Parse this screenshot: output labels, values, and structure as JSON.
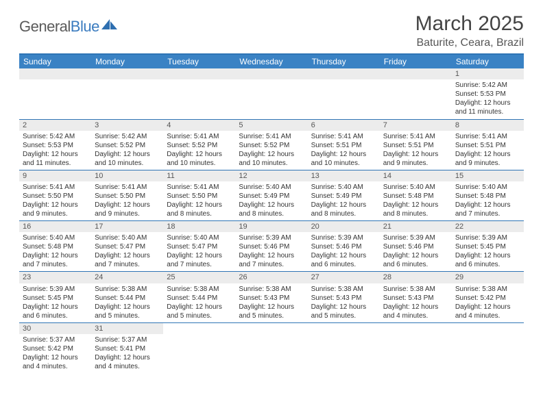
{
  "logo": {
    "part1": "General",
    "part2": "Blue"
  },
  "title": "March 2025",
  "location": "Baturite, Ceara, Brazil",
  "dayHeaders": [
    "Sunday",
    "Monday",
    "Tuesday",
    "Wednesday",
    "Thursday",
    "Friday",
    "Saturday"
  ],
  "colors": {
    "headerBg": "#3a82c4",
    "headerText": "#ffffff",
    "borderBlue": "#2e74b5",
    "dayNumBg": "#ececec",
    "logoGray": "#5a5a5a",
    "logoBlue": "#3a7bbf"
  },
  "weeks": [
    [
      null,
      null,
      null,
      null,
      null,
      null,
      {
        "num": "1",
        "sunrise": "Sunrise: 5:42 AM",
        "sunset": "Sunset: 5:53 PM",
        "daylight": "Daylight: 12 hours and 11 minutes."
      }
    ],
    [
      {
        "num": "2",
        "sunrise": "Sunrise: 5:42 AM",
        "sunset": "Sunset: 5:53 PM",
        "daylight": "Daylight: 12 hours and 11 minutes."
      },
      {
        "num": "3",
        "sunrise": "Sunrise: 5:42 AM",
        "sunset": "Sunset: 5:52 PM",
        "daylight": "Daylight: 12 hours and 10 minutes."
      },
      {
        "num": "4",
        "sunrise": "Sunrise: 5:41 AM",
        "sunset": "Sunset: 5:52 PM",
        "daylight": "Daylight: 12 hours and 10 minutes."
      },
      {
        "num": "5",
        "sunrise": "Sunrise: 5:41 AM",
        "sunset": "Sunset: 5:52 PM",
        "daylight": "Daylight: 12 hours and 10 minutes."
      },
      {
        "num": "6",
        "sunrise": "Sunrise: 5:41 AM",
        "sunset": "Sunset: 5:51 PM",
        "daylight": "Daylight: 12 hours and 10 minutes."
      },
      {
        "num": "7",
        "sunrise": "Sunrise: 5:41 AM",
        "sunset": "Sunset: 5:51 PM",
        "daylight": "Daylight: 12 hours and 9 minutes."
      },
      {
        "num": "8",
        "sunrise": "Sunrise: 5:41 AM",
        "sunset": "Sunset: 5:51 PM",
        "daylight": "Daylight: 12 hours and 9 minutes."
      }
    ],
    [
      {
        "num": "9",
        "sunrise": "Sunrise: 5:41 AM",
        "sunset": "Sunset: 5:50 PM",
        "daylight": "Daylight: 12 hours and 9 minutes."
      },
      {
        "num": "10",
        "sunrise": "Sunrise: 5:41 AM",
        "sunset": "Sunset: 5:50 PM",
        "daylight": "Daylight: 12 hours and 9 minutes."
      },
      {
        "num": "11",
        "sunrise": "Sunrise: 5:41 AM",
        "sunset": "Sunset: 5:50 PM",
        "daylight": "Daylight: 12 hours and 8 minutes."
      },
      {
        "num": "12",
        "sunrise": "Sunrise: 5:40 AM",
        "sunset": "Sunset: 5:49 PM",
        "daylight": "Daylight: 12 hours and 8 minutes."
      },
      {
        "num": "13",
        "sunrise": "Sunrise: 5:40 AM",
        "sunset": "Sunset: 5:49 PM",
        "daylight": "Daylight: 12 hours and 8 minutes."
      },
      {
        "num": "14",
        "sunrise": "Sunrise: 5:40 AM",
        "sunset": "Sunset: 5:48 PM",
        "daylight": "Daylight: 12 hours and 8 minutes."
      },
      {
        "num": "15",
        "sunrise": "Sunrise: 5:40 AM",
        "sunset": "Sunset: 5:48 PM",
        "daylight": "Daylight: 12 hours and 7 minutes."
      }
    ],
    [
      {
        "num": "16",
        "sunrise": "Sunrise: 5:40 AM",
        "sunset": "Sunset: 5:48 PM",
        "daylight": "Daylight: 12 hours and 7 minutes."
      },
      {
        "num": "17",
        "sunrise": "Sunrise: 5:40 AM",
        "sunset": "Sunset: 5:47 PM",
        "daylight": "Daylight: 12 hours and 7 minutes."
      },
      {
        "num": "18",
        "sunrise": "Sunrise: 5:40 AM",
        "sunset": "Sunset: 5:47 PM",
        "daylight": "Daylight: 12 hours and 7 minutes."
      },
      {
        "num": "19",
        "sunrise": "Sunrise: 5:39 AM",
        "sunset": "Sunset: 5:46 PM",
        "daylight": "Daylight: 12 hours and 7 minutes."
      },
      {
        "num": "20",
        "sunrise": "Sunrise: 5:39 AM",
        "sunset": "Sunset: 5:46 PM",
        "daylight": "Daylight: 12 hours and 6 minutes."
      },
      {
        "num": "21",
        "sunrise": "Sunrise: 5:39 AM",
        "sunset": "Sunset: 5:46 PM",
        "daylight": "Daylight: 12 hours and 6 minutes."
      },
      {
        "num": "22",
        "sunrise": "Sunrise: 5:39 AM",
        "sunset": "Sunset: 5:45 PM",
        "daylight": "Daylight: 12 hours and 6 minutes."
      }
    ],
    [
      {
        "num": "23",
        "sunrise": "Sunrise: 5:39 AM",
        "sunset": "Sunset: 5:45 PM",
        "daylight": "Daylight: 12 hours and 6 minutes."
      },
      {
        "num": "24",
        "sunrise": "Sunrise: 5:38 AM",
        "sunset": "Sunset: 5:44 PM",
        "daylight": "Daylight: 12 hours and 5 minutes."
      },
      {
        "num": "25",
        "sunrise": "Sunrise: 5:38 AM",
        "sunset": "Sunset: 5:44 PM",
        "daylight": "Daylight: 12 hours and 5 minutes."
      },
      {
        "num": "26",
        "sunrise": "Sunrise: 5:38 AM",
        "sunset": "Sunset: 5:43 PM",
        "daylight": "Daylight: 12 hours and 5 minutes."
      },
      {
        "num": "27",
        "sunrise": "Sunrise: 5:38 AM",
        "sunset": "Sunset: 5:43 PM",
        "daylight": "Daylight: 12 hours and 5 minutes."
      },
      {
        "num": "28",
        "sunrise": "Sunrise: 5:38 AM",
        "sunset": "Sunset: 5:43 PM",
        "daylight": "Daylight: 12 hours and 4 minutes."
      },
      {
        "num": "29",
        "sunrise": "Sunrise: 5:38 AM",
        "sunset": "Sunset: 5:42 PM",
        "daylight": "Daylight: 12 hours and 4 minutes."
      }
    ],
    [
      {
        "num": "30",
        "sunrise": "Sunrise: 5:37 AM",
        "sunset": "Sunset: 5:42 PM",
        "daylight": "Daylight: 12 hours and 4 minutes."
      },
      {
        "num": "31",
        "sunrise": "Sunrise: 5:37 AM",
        "sunset": "Sunset: 5:41 PM",
        "daylight": "Daylight: 12 hours and 4 minutes."
      },
      null,
      null,
      null,
      null,
      null
    ]
  ]
}
